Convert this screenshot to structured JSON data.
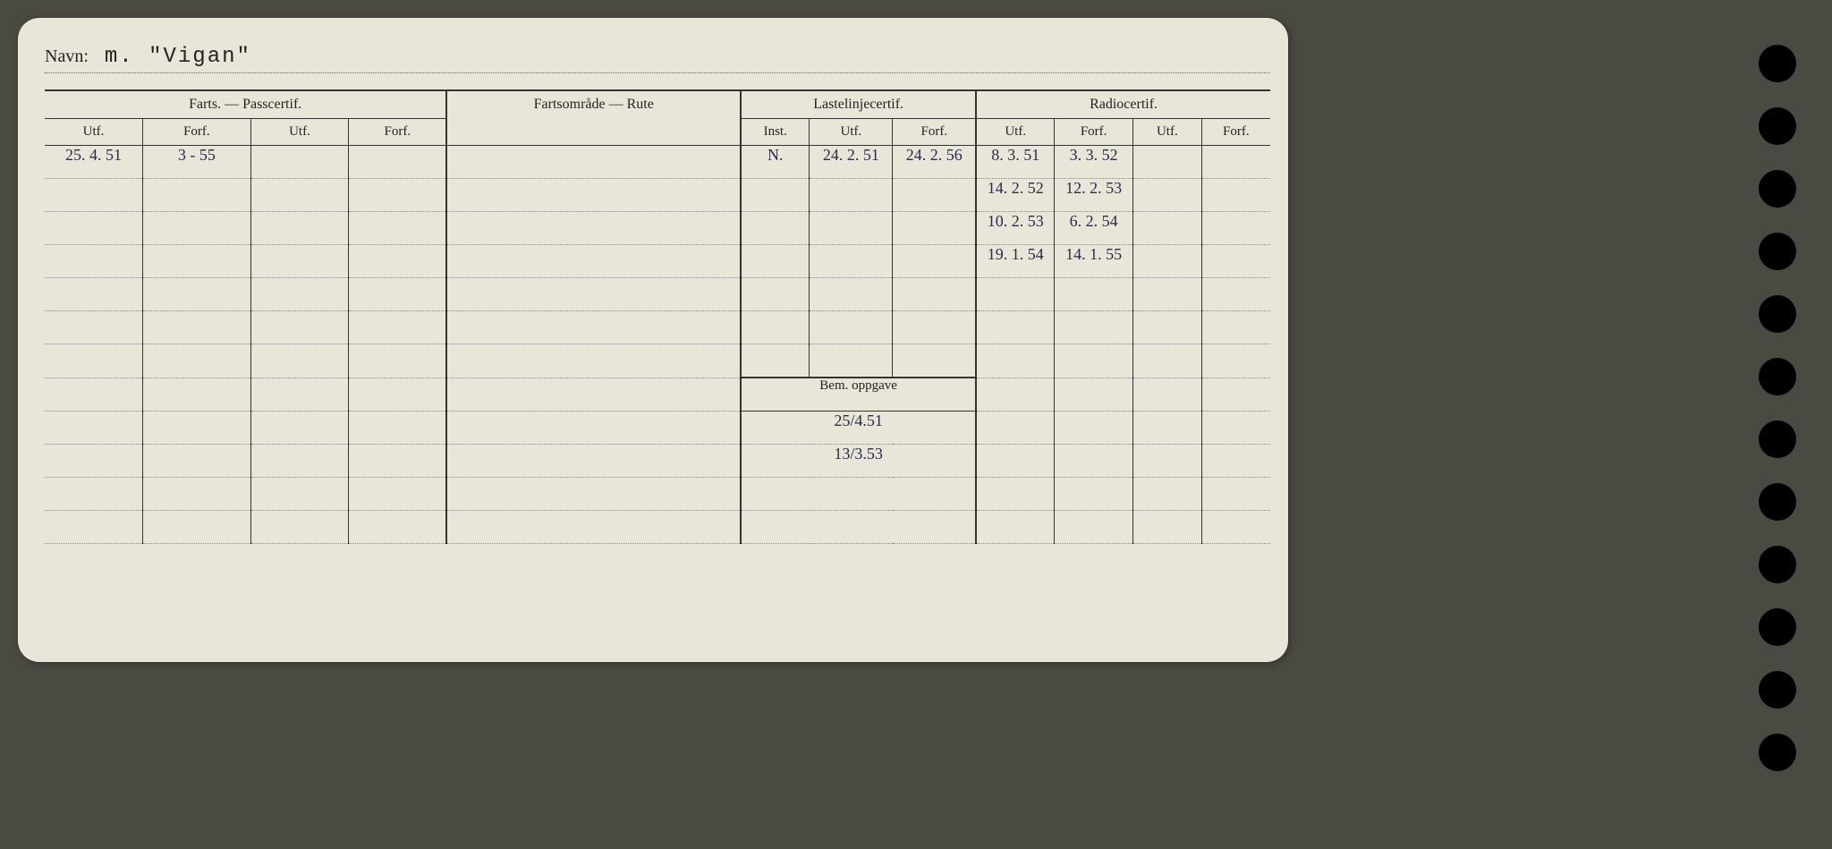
{
  "name_label": "Navn:",
  "name_value": "m. \"Vigan\"",
  "groups": {
    "farts": "Farts. — Passcertif.",
    "rute": "Fartsområde — Rute",
    "laste": "Lastelinjecertif.",
    "radio": "Radiocertif."
  },
  "subheaders": {
    "utf": "Utf.",
    "forf": "Forf.",
    "inst": "Inst."
  },
  "bem_header": "Bem. oppgave",
  "rows": [
    {
      "farts_utf1": "25. 4. 51",
      "farts_forf1": "3 - 55",
      "farts_utf2": "",
      "farts_forf2": "",
      "rute": "",
      "laste_inst": "N.",
      "laste_utf": "24. 2. 51",
      "laste_forf": "24. 2. 56",
      "radio_utf1": "8. 3. 51",
      "radio_forf1": "3. 3. 52",
      "radio_utf2": "",
      "radio_forf2": ""
    },
    {
      "farts_utf1": "",
      "farts_forf1": "",
      "farts_utf2": "",
      "farts_forf2": "",
      "rute": "",
      "laste_inst": "",
      "laste_utf": "",
      "laste_forf": "",
      "radio_utf1": "14. 2. 52",
      "radio_forf1": "12. 2. 53",
      "radio_utf2": "",
      "radio_forf2": ""
    },
    {
      "farts_utf1": "",
      "farts_forf1": "",
      "farts_utf2": "",
      "farts_forf2": "",
      "rute": "",
      "laste_inst": "",
      "laste_utf": "",
      "laste_forf": "",
      "radio_utf1": "10. 2. 53",
      "radio_forf1": "6. 2. 54",
      "radio_utf2": "",
      "radio_forf2": ""
    },
    {
      "farts_utf1": "",
      "farts_forf1": "",
      "farts_utf2": "",
      "farts_forf2": "",
      "rute": "",
      "laste_inst": "",
      "laste_utf": "",
      "laste_forf": "",
      "radio_utf1": "19. 1. 54",
      "radio_forf1": "14. 1. 55",
      "radio_utf2": "",
      "radio_forf2": ""
    },
    {
      "farts_utf1": "",
      "farts_forf1": "",
      "farts_utf2": "",
      "farts_forf2": "",
      "rute": "",
      "laste_inst": "",
      "laste_utf": "",
      "laste_forf": "",
      "radio_utf1": "",
      "radio_forf1": "",
      "radio_utf2": "",
      "radio_forf2": ""
    },
    {
      "farts_utf1": "",
      "farts_forf1": "",
      "farts_utf2": "",
      "farts_forf2": "",
      "rute": "",
      "laste_inst": "",
      "laste_utf": "",
      "laste_forf": "",
      "radio_utf1": "",
      "radio_forf1": "",
      "radio_utf2": "",
      "radio_forf2": ""
    },
    {
      "farts_utf1": "",
      "farts_forf1": "",
      "farts_utf2": "",
      "farts_forf2": "",
      "rute": "",
      "laste_inst": "",
      "laste_utf": "",
      "laste_forf": "",
      "radio_utf1": "",
      "radio_forf1": "",
      "radio_utf2": "",
      "radio_forf2": ""
    }
  ],
  "bem_rows": [
    "25/4.51",
    "13/3.53",
    "",
    ""
  ],
  "colors": {
    "card_bg": "#e8e6d8",
    "page_bg": "#4a4a42",
    "ink": "#2a2a4a",
    "print": "#222222",
    "dotted": "#888888"
  }
}
